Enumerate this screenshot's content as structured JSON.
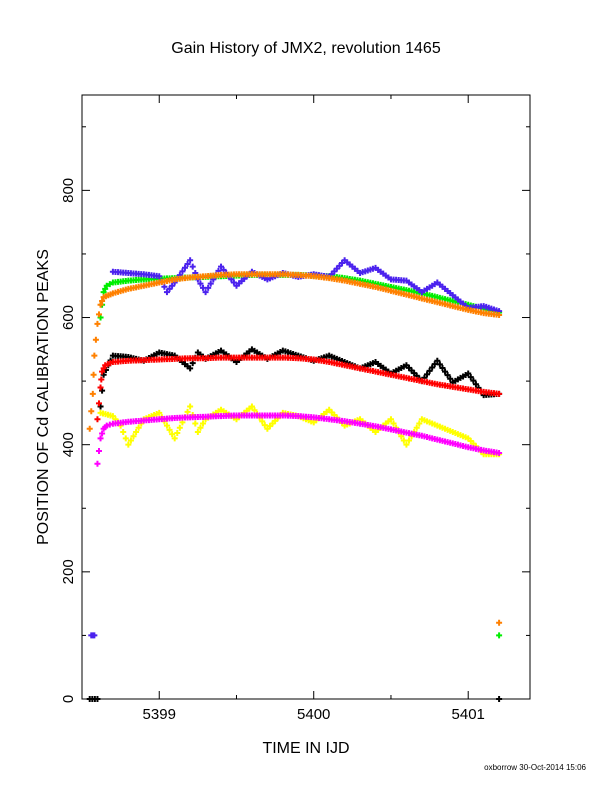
{
  "chart_data": {
    "type": "scatter",
    "title": "Gain History of JMX2, revolution 1465",
    "xlabel": "TIME IN IJD",
    "ylabel": "POSITION OF Cd CALIBRATION PEAKS",
    "xlim": [
      5398.5,
      5401.4
    ],
    "ylim": [
      0,
      950
    ],
    "xticks": [
      5399,
      5400,
      5401
    ],
    "xtick_labels": [
      "5399",
      "5400",
      "5401"
    ],
    "yticks": [
      0,
      200,
      400,
      600,
      800
    ],
    "ytick_labels": [
      "0",
      "200",
      "400",
      "600",
      "800"
    ],
    "grid": false,
    "legend": "none",
    "footer": "oxborrow 30-Oct-2014 15:06",
    "series": [
      {
        "color": "#00ee00",
        "marker": "plus",
        "x": [
          5398.62,
          5398.64,
          5398.66,
          5398.7,
          5398.8,
          5398.9,
          5399.0,
          5399.1,
          5399.2,
          5399.3,
          5399.4,
          5399.5,
          5399.6,
          5399.7,
          5399.8,
          5399.9,
          5400.0,
          5400.1,
          5400.2,
          5400.3,
          5400.4,
          5400.5,
          5400.6,
          5400.7,
          5400.8,
          5400.9,
          5401.0,
          5401.1,
          5401.2,
          5401.2
        ],
        "y": [
          600,
          640,
          650,
          655,
          658,
          660,
          661,
          662,
          663,
          664,
          665,
          666,
          667,
          667,
          667,
          667,
          666,
          665,
          662,
          658,
          653,
          648,
          643,
          638,
          632,
          626,
          620,
          614,
          608,
          100
        ]
      },
      {
        "color": "#4b22ee",
        "marker": "plus",
        "x": [
          5398.56,
          5398.58,
          5398.7,
          5398.8,
          5398.9,
          5399.0,
          5399.05,
          5399.1,
          5399.2,
          5399.25,
          5399.3,
          5399.4,
          5399.5,
          5399.6,
          5399.7,
          5399.8,
          5399.9,
          5400.0,
          5400.1,
          5400.2,
          5400.3,
          5400.4,
          5400.5,
          5400.6,
          5400.7,
          5400.8,
          5400.9,
          5401.0,
          5401.1,
          5401.2
        ],
        "y": [
          100,
          100,
          672,
          670,
          668,
          665,
          640,
          655,
          690,
          660,
          640,
          680,
          650,
          672,
          660,
          670,
          664,
          668,
          664,
          690,
          670,
          678,
          660,
          658,
          640,
          655,
          635,
          615,
          618,
          610
        ]
      },
      {
        "color": "#000000",
        "marker": "plus",
        "x": [
          5398.55,
          5398.6,
          5398.62,
          5398.64,
          5398.7,
          5398.8,
          5398.9,
          5399.0,
          5399.1,
          5399.2,
          5399.25,
          5399.3,
          5399.4,
          5399.5,
          5399.6,
          5399.7,
          5399.8,
          5399.9,
          5400.0,
          5400.1,
          5400.2,
          5400.3,
          5400.4,
          5400.5,
          5400.6,
          5400.7,
          5400.8,
          5400.9,
          5401.0,
          5401.1,
          5401.2,
          5401.2
        ],
        "y": [
          0,
          0,
          460,
          510,
          540,
          538,
          532,
          545,
          540,
          520,
          545,
          535,
          548,
          530,
          550,
          535,
          548,
          540,
          532,
          540,
          530,
          520,
          530,
          512,
          525,
          500,
          532,
          498,
          512,
          478,
          480,
          0
        ]
      },
      {
        "color": "#ff0000",
        "marker": "plus",
        "x": [
          5398.6,
          5398.62,
          5398.63,
          5398.65,
          5398.7,
          5398.8,
          5398.9,
          5399.0,
          5399.1,
          5399.2,
          5399.3,
          5399.4,
          5399.5,
          5399.6,
          5399.7,
          5399.8,
          5399.9,
          5400.0,
          5400.1,
          5400.2,
          5400.3,
          5400.4,
          5400.5,
          5400.6,
          5400.7,
          5400.8,
          5400.9,
          5401.0,
          5401.1,
          5401.2
        ],
        "y": [
          440,
          490,
          515,
          525,
          530,
          532,
          533,
          534,
          535,
          536,
          536,
          537,
          537,
          537,
          537,
          537,
          536,
          534,
          530,
          525,
          520,
          515,
          510,
          505,
          500,
          495,
          491,
          487,
          483,
          480
        ]
      },
      {
        "color": "#ffff00",
        "marker": "plus",
        "x": [
          5398.62,
          5398.7,
          5398.75,
          5398.8,
          5398.9,
          5399.0,
          5399.1,
          5399.2,
          5399.25,
          5399.3,
          5399.4,
          5399.5,
          5399.6,
          5399.7,
          5399.8,
          5399.9,
          5400.0,
          5400.1,
          5400.2,
          5400.3,
          5400.4,
          5400.5,
          5400.6,
          5400.7,
          5400.8,
          5400.9,
          5401.0,
          5401.1,
          5401.2
        ],
        "y": [
          450,
          445,
          430,
          400,
          440,
          450,
          410,
          460,
          420,
          440,
          455,
          440,
          460,
          425,
          450,
          445,
          435,
          455,
          430,
          440,
          420,
          440,
          400,
          440,
          430,
          420,
          410,
          385,
          385
        ]
      },
      {
        "color": "#ff00ff",
        "marker": "plus",
        "x": [
          5398.6,
          5398.62,
          5398.64,
          5398.66,
          5398.7,
          5398.8,
          5398.9,
          5399.0,
          5399.1,
          5399.2,
          5399.3,
          5399.4,
          5399.5,
          5399.6,
          5399.7,
          5399.8,
          5399.9,
          5400.0,
          5400.1,
          5400.2,
          5400.3,
          5400.4,
          5400.5,
          5400.6,
          5400.7,
          5400.8,
          5400.9,
          5401.0,
          5401.1,
          5401.2
        ],
        "y": [
          370,
          410,
          425,
          430,
          433,
          436,
          438,
          440,
          442,
          443,
          444,
          445,
          446,
          446,
          446,
          446,
          445,
          443,
          440,
          437,
          433,
          429,
          424,
          419,
          414,
          408,
          402,
          396,
          391,
          387
        ]
      },
      {
        "color": "#ff8000",
        "marker": "plus",
        "x": [
          5398.55,
          5398.57,
          5398.58,
          5398.6,
          5398.62,
          5398.64,
          5398.7,
          5398.8,
          5398.9,
          5399.0,
          5399.1,
          5399.2,
          5399.3,
          5399.4,
          5399.5,
          5399.6,
          5399.7,
          5399.8,
          5399.9,
          5400.0,
          5400.1,
          5400.2,
          5400.3,
          5400.4,
          5400.5,
          5400.6,
          5400.7,
          5400.8,
          5400.9,
          5401.0,
          5401.1,
          5401.2,
          5401.2
        ],
        "y": [
          425,
          480,
          540,
          590,
          620,
          632,
          638,
          645,
          650,
          655,
          660,
          663,
          665,
          667,
          668,
          668,
          668,
          668,
          667,
          665,
          662,
          658,
          653,
          648,
          642,
          636,
          630,
          624,
          618,
          612,
          607,
          604,
          120
        ]
      }
    ]
  }
}
